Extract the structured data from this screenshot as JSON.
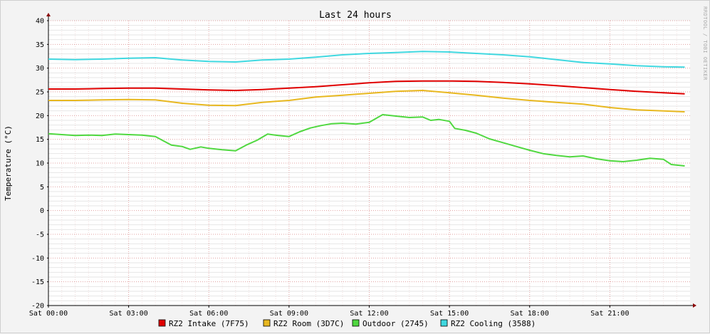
{
  "chart_data": {
    "type": "line",
    "title": "Last 24 hours",
    "ylabel": "Temperature (°C)",
    "xlabel": "",
    "watermark": "RRDTOOL / TOBI OETIKER",
    "ylim": [
      -20,
      40
    ],
    "xlim": [
      0,
      24
    ],
    "y_ticks": [
      40,
      35,
      30,
      25,
      20,
      15,
      10,
      5,
      0,
      -5,
      -10,
      -15,
      -20
    ],
    "x_ticks": [
      {
        "x": 0,
        "label": "Sat 00:00"
      },
      {
        "x": 3,
        "label": "Sat 03:00"
      },
      {
        "x": 6,
        "label": "Sat 06:00"
      },
      {
        "x": 9,
        "label": "Sat 09:00"
      },
      {
        "x": 12,
        "label": "Sat 12:00"
      },
      {
        "x": 15,
        "label": "Sat 15:00"
      },
      {
        "x": 18,
        "label": "Sat 18:00"
      },
      {
        "x": 21,
        "label": "Sat 21:00"
      }
    ],
    "grid": true,
    "legend_position": "bottom",
    "series": [
      {
        "name": "RZ2 Intake (7F75)",
        "color": "#e00000",
        "x": [
          0,
          1,
          2,
          3,
          4,
          5,
          6,
          7,
          8,
          9,
          10,
          11,
          12,
          13,
          14,
          15,
          16,
          17,
          18,
          19,
          20,
          21,
          22,
          23,
          23.8
        ],
        "y": [
          25.6,
          25.6,
          25.7,
          25.8,
          25.8,
          25.6,
          25.4,
          25.3,
          25.5,
          25.8,
          26.1,
          26.5,
          26.9,
          27.2,
          27.3,
          27.3,
          27.2,
          27.0,
          26.7,
          26.3,
          25.9,
          25.5,
          25.1,
          24.8,
          24.6
        ]
      },
      {
        "name": "RZ2 Room (3D7C)",
        "color": "#e8b820",
        "x": [
          0,
          1,
          2,
          3,
          4,
          5,
          6,
          7,
          8,
          9,
          10,
          11,
          12,
          13,
          14,
          15,
          16,
          17,
          18,
          19,
          20,
          21,
          22,
          23,
          23.8
        ],
        "y": [
          23.2,
          23.2,
          23.3,
          23.4,
          23.3,
          22.6,
          22.2,
          22.1,
          22.8,
          23.2,
          23.9,
          24.3,
          24.7,
          25.1,
          25.3,
          24.8,
          24.3,
          23.7,
          23.2,
          22.8,
          22.4,
          21.7,
          21.2,
          21.0,
          20.8
        ]
      },
      {
        "name": "Outdoor (2745)",
        "color": "#50d840",
        "x": [
          0,
          0.5,
          1,
          1.5,
          2,
          2.5,
          3,
          3.5,
          4,
          4.3,
          4.6,
          5,
          5.3,
          5.7,
          6,
          6.5,
          7,
          7.4,
          7.8,
          8.2,
          8.6,
          9,
          9.4,
          9.8,
          10.2,
          10.6,
          11,
          11.5,
          12,
          12.5,
          13,
          13.5,
          14,
          14.3,
          14.6,
          15,
          15.2,
          15.6,
          16,
          16.5,
          17,
          17.5,
          18,
          18.5,
          19,
          19.5,
          20,
          20.5,
          21,
          21.5,
          22,
          22.5,
          23,
          23.3,
          23.8
        ],
        "y": [
          16.2,
          16.0,
          15.8,
          15.9,
          15.8,
          16.1,
          16.0,
          15.9,
          15.6,
          14.7,
          13.8,
          13.5,
          12.9,
          13.4,
          13.1,
          12.8,
          12.6,
          13.8,
          14.8,
          16.1,
          15.8,
          15.6,
          16.6,
          17.4,
          17.9,
          18.3,
          18.4,
          18.2,
          18.6,
          20.2,
          19.9,
          19.6,
          19.7,
          19.0,
          19.2,
          18.8,
          17.3,
          16.9,
          16.3,
          15.1,
          14.3,
          13.5,
          12.7,
          12.0,
          11.6,
          11.3,
          11.5,
          10.9,
          10.5,
          10.3,
          10.6,
          11.0,
          10.8,
          9.7,
          9.4
        ]
      },
      {
        "name": "RZ2 Cooling (3588)",
        "color": "#40d8e0",
        "x": [
          0,
          1,
          2,
          3,
          4,
          5,
          6,
          7,
          8,
          9,
          10,
          11,
          12,
          13,
          14,
          15,
          16,
          17,
          18,
          19,
          20,
          21,
          22,
          23,
          23.8
        ],
        "y": [
          31.9,
          31.8,
          31.9,
          32.1,
          32.2,
          31.7,
          31.4,
          31.3,
          31.7,
          31.9,
          32.3,
          32.8,
          33.1,
          33.3,
          33.5,
          33.4,
          33.1,
          32.8,
          32.4,
          31.8,
          31.2,
          30.9,
          30.5,
          30.3,
          30.2
        ]
      }
    ]
  }
}
